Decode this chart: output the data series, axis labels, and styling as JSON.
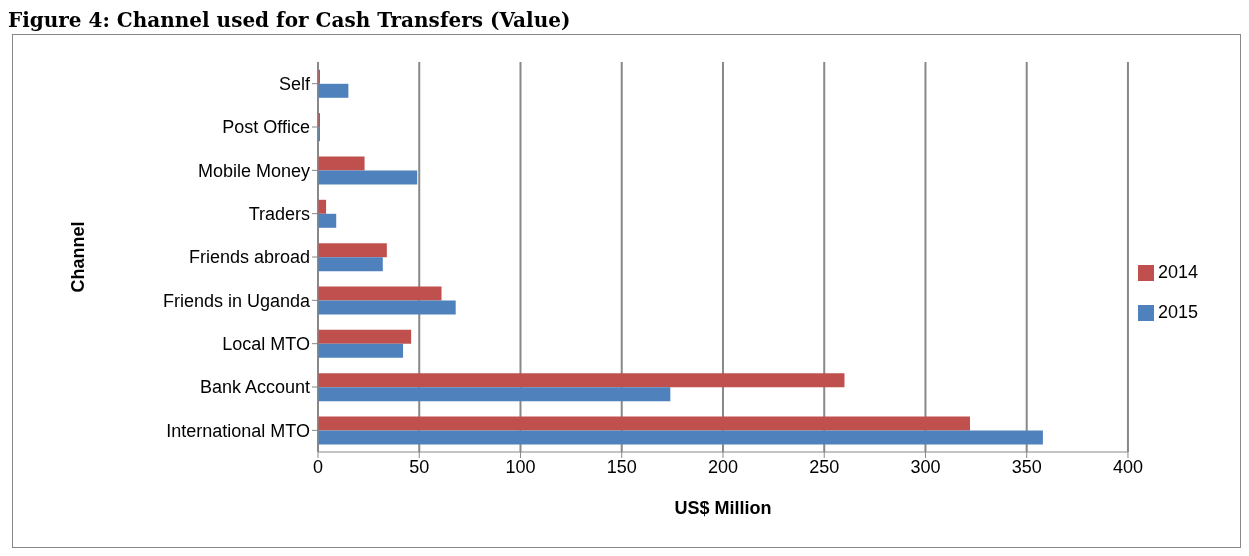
{
  "chart_data": {
    "type": "bar",
    "orientation": "horizontal",
    "title": "Figure 4: Channel used for Cash Transfers (Value)",
    "xlabel": "US$ Million",
    "ylabel": "Channel",
    "categories": [
      "Self",
      "Post Office",
      "Mobile Money",
      "Traders",
      "Friends abroad",
      "Friends in Uganda",
      "Local MTO",
      "Bank Account",
      "International MTO"
    ],
    "series": [
      {
        "name": "2014",
        "color": "#c0504d",
        "values": [
          1,
          1,
          23,
          4,
          34,
          61,
          46,
          260,
          322
        ]
      },
      {
        "name": "2015",
        "color": "#4f81bd",
        "values": [
          15,
          1,
          49,
          9,
          32,
          68,
          42,
          174,
          358
        ]
      }
    ],
    "xlim": [
      0,
      400
    ],
    "xticks": [
      0,
      50,
      100,
      150,
      200,
      250,
      300,
      350,
      400
    ],
    "grid": "x",
    "legend": "right"
  }
}
